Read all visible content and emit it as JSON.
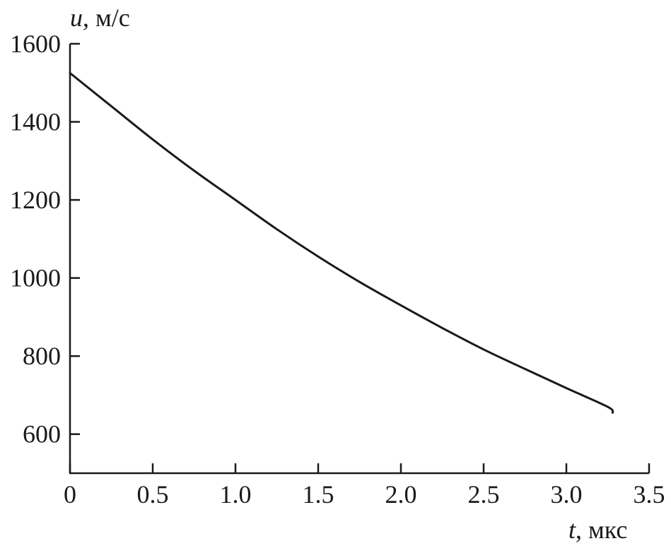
{
  "chart_data": {
    "type": "line",
    "title": "",
    "xlabel": {
      "var": "t",
      "unit": ", мкс"
    },
    "ylabel": {
      "var": "u",
      "unit": ", м/с"
    },
    "xlim": [
      0,
      3.5
    ],
    "ylim": [
      500,
      1600
    ],
    "x_ticks": [
      {
        "value": 0,
        "label": "0"
      },
      {
        "value": 0.5,
        "label": "0.5"
      },
      {
        "value": 1.0,
        "label": "1.0"
      },
      {
        "value": 1.5,
        "label": "1.5"
      },
      {
        "value": 2.0,
        "label": "2.0"
      },
      {
        "value": 2.5,
        "label": "2.5"
      },
      {
        "value": 3.0,
        "label": "3.0"
      },
      {
        "value": 3.5,
        "label": "3.5"
      }
    ],
    "y_ticks": [
      {
        "value": 600,
        "label": "600"
      },
      {
        "value": 800,
        "label": "800"
      },
      {
        "value": 1000,
        "label": "1000"
      },
      {
        "value": 1200,
        "label": "1200"
      },
      {
        "value": 1400,
        "label": "1400"
      },
      {
        "value": 1600,
        "label": "1600"
      }
    ],
    "grid": false,
    "series": [
      {
        "color": "#1a1a1a",
        "x": [
          0,
          0.25,
          0.5,
          0.75,
          1.0,
          1.25,
          1.5,
          1.75,
          2.0,
          2.25,
          2.5,
          2.75,
          3.0,
          3.25,
          3.28
        ],
        "y": [
          1525,
          1440,
          1355,
          1275,
          1200,
          1125,
          1055,
          990,
          930,
          872,
          817,
          767,
          718,
          670,
          655
        ]
      }
    ]
  }
}
